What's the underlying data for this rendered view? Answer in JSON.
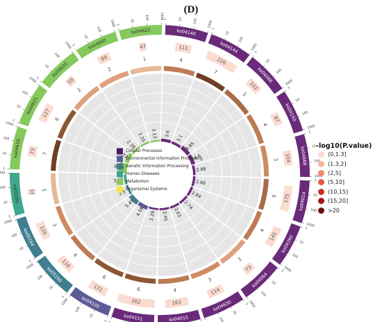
{
  "panel_label": "(D)",
  "chart_data": {
    "type": "circos",
    "terms": [
      {
        "id": "ko04140",
        "category": 1,
        "count": 111,
        "ratio": 3.6,
        "bin": 4
      },
      {
        "id": "ko04144",
        "category": 1,
        "count": 226,
        "ratio": 3.1,
        "bin": 7
      },
      {
        "id": "ko04068",
        "category": 1,
        "count": 103,
        "ratio": 4.85,
        "bin": 5
      },
      {
        "id": "ko04150",
        "category": 1,
        "count": 87,
        "ratio": 4.6,
        "bin": 4
      },
      {
        "id": "ko04668",
        "category": 1,
        "count": 104,
        "ratio": 2.88,
        "bin": 3
      },
      {
        "id": "ko04014",
        "category": 1,
        "count": 175,
        "ratio": 2.86,
        "bin": 5
      },
      {
        "id": "ko04390",
        "category": 1,
        "count": 141,
        "ratio": 2.84,
        "bin": 4
      },
      {
        "id": "ko04064",
        "category": 1,
        "count": 73,
        "ratio": 2.74,
        "bin": 2
      },
      {
        "id": "ko04630",
        "category": 1,
        "count": 114,
        "ratio": 2.63,
        "bin": 3
      },
      {
        "id": "ko04015",
        "category": 1,
        "count": 163,
        "ratio": 2.45,
        "bin": 4
      },
      {
        "id": "ko04151",
        "category": 1,
        "count": 262,
        "ratio": 2.29,
        "bin": 6
      },
      {
        "id": "ko04120",
        "category": 2,
        "count": 131,
        "ratio": 4.58,
        "bin": 6
      },
      {
        "id": "ko05160",
        "category": 3,
        "count": 116,
        "ratio": 5.45,
        "bin": 4
      },
      {
        "id": "ko05164",
        "category": 3,
        "count": 120,
        "ratio": 2.5,
        "bin": 3
      },
      {
        "id": "ko00280",
        "category": 4,
        "count": 33,
        "ratio": 3.03,
        "bin": 1
      },
      {
        "id": "ko04610",
        "category": 5,
        "count": 73,
        "ratio": 9.59,
        "bin": 7
      },
      {
        "id": "ko04621",
        "category": 5,
        "count": 127,
        "ratio": 4.72,
        "bin": 6
      },
      {
        "id": "ko04620",
        "category": 5,
        "count": 59,
        "ratio": 2.39,
        "bin": 2
      },
      {
        "id": "ko04660",
        "category": 5,
        "count": 89,
        "ratio": 2.25,
        "bin": 2
      },
      {
        "id": "ko04622",
        "category": 5,
        "count": 47,
        "ratio": 2.13,
        "bin": 1
      }
    ],
    "outer_ticks": [
      "1",
      "10",
      "100",
      "1000"
    ],
    "category_legend": [
      {
        "label": "Cellular Processes",
        "color": "#4a1a6b"
      },
      {
        "label": "Environmental Information Processing",
        "color": "#5b5d9a"
      },
      {
        "label": "Genetic Information Processing",
        "color": "#3f7d8c"
      },
      {
        "label": "Human Diseases",
        "color": "#3aa58a"
      },
      {
        "label": "Metabolism",
        "color": "#8cc85a"
      },
      {
        "label": "Organismal Systems",
        "color": "#f6e44a"
      }
    ],
    "segment_colors": [
      "#6a2a7a",
      "#5d5b96",
      "#3f7f90",
      "#3fa88c",
      "#85c95c",
      "#f5e53c"
    ],
    "pvalue_legend": {
      "title": "-log10(P.value)",
      "bins": [
        {
          "label": "(0,1.3]",
          "color": "#fbdcd0"
        },
        {
          "label": "(1.3,2]",
          "color": "#f7b59b"
        },
        {
          "label": "(2,5]",
          "color": "#ef8a6a"
        },
        {
          "label": "(5,10]",
          "color": "#e3593f"
        },
        {
          "label": "(10,15]",
          "color": "#c83127"
        },
        {
          "label": "(15,20]",
          "color": "#a1161d"
        },
        {
          "label": ">20",
          "color": "#6b1010"
        }
      ]
    },
    "band_colors": [
      "#e6b896",
      "#dda17d",
      "#cf8c62",
      "#bd7c56",
      "#a76b46",
      "#8d5634",
      "#6f3f24"
    ],
    "legend_placement": "right"
  }
}
